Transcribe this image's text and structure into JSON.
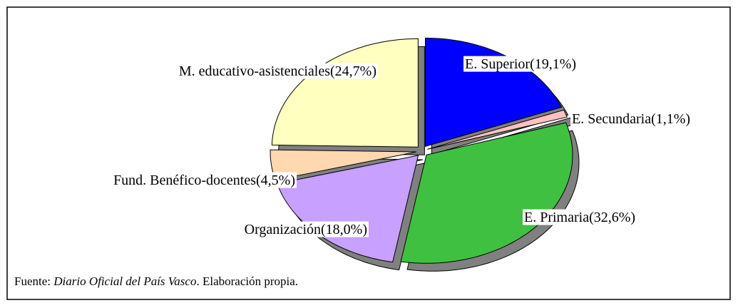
{
  "chart_data": {
    "type": "pie",
    "categories": [
      "E. Superior",
      "E. Secundaria",
      "E. Primaria",
      "Organización",
      "Fund. Benéfico-docentes",
      "M. educativo-asistenciales"
    ],
    "values": [
      19.1,
      1.1,
      32.6,
      18.0,
      4.5,
      24.7
    ],
    "value_labels": [
      "(19,1%)",
      "(1,1%)",
      "(32,6%)",
      "(18,0%)",
      "(4,5%)",
      "(24,7%)"
    ],
    "colors": [
      "#0000ff",
      "#ffc0c0",
      "#40c040",
      "#c8a0ff",
      "#ffd8b0",
      "#ffffc0"
    ],
    "source": {
      "prefix": "Fuente: ",
      "publication": "Diario Oficial del País Vasco",
      "suffix": ". Elaboración propia."
    }
  }
}
